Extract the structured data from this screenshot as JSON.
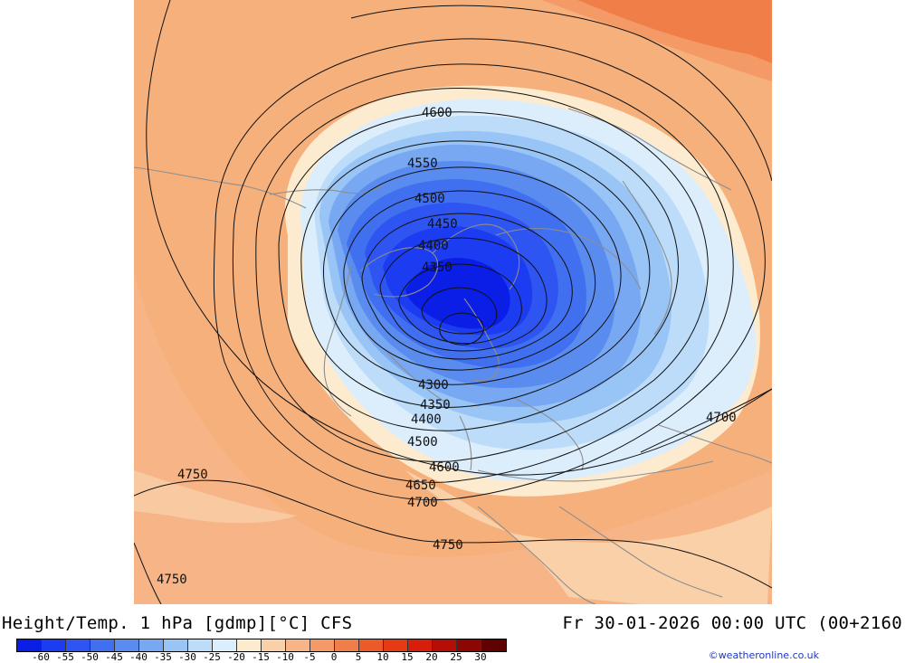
{
  "caption": {
    "left": "Height/Temp. 1 hPa [gdmp][°C] CFS",
    "right": "Fr 30-01-2026 00:00 UTC (00+2160"
  },
  "credit": "©weatheronline.co.uk",
  "colorbar": {
    "ticks": [
      "-60",
      "-55",
      "-50",
      "-45",
      "-40",
      "-35",
      "-30",
      "-25",
      "-20",
      "-15",
      "-10",
      "-5",
      "0",
      "5",
      "10",
      "15",
      "20",
      "25",
      "30"
    ],
    "colors": [
      "#0a1ee6",
      "#1b3cf0",
      "#2e55f2",
      "#4070f0",
      "#5a8cf0",
      "#78a8f2",
      "#98c4f6",
      "#bcdcfa",
      "#dcedfc",
      "#fdebd0",
      "#f9d0a8",
      "#f7b486",
      "#f49a66",
      "#f07e48",
      "#ec5a2a",
      "#e63a14",
      "#d81e0a",
      "#b40e06",
      "#8c0604",
      "#600202"
    ]
  },
  "contour_labels": {
    "c4600_top": "4600",
    "c4550": "4550",
    "c4500_top": "4500",
    "c4450": "4450",
    "c4400_top": "4400",
    "c4350_top": "4350",
    "c4300": "4300",
    "c4350_bot": "4350",
    "c4400_bot": "4400",
    "c4500_bot": "4500",
    "c4600_bot": "4600",
    "c4650": "4650",
    "c4700_bot": "4700",
    "c4700_right": "4700",
    "c4750_left": "4750",
    "c4750_bot": "4750",
    "c4750_corner": "4750"
  },
  "colors": {
    "warm_background": "#f6b07c",
    "cold_core": "#0a2be6"
  }
}
